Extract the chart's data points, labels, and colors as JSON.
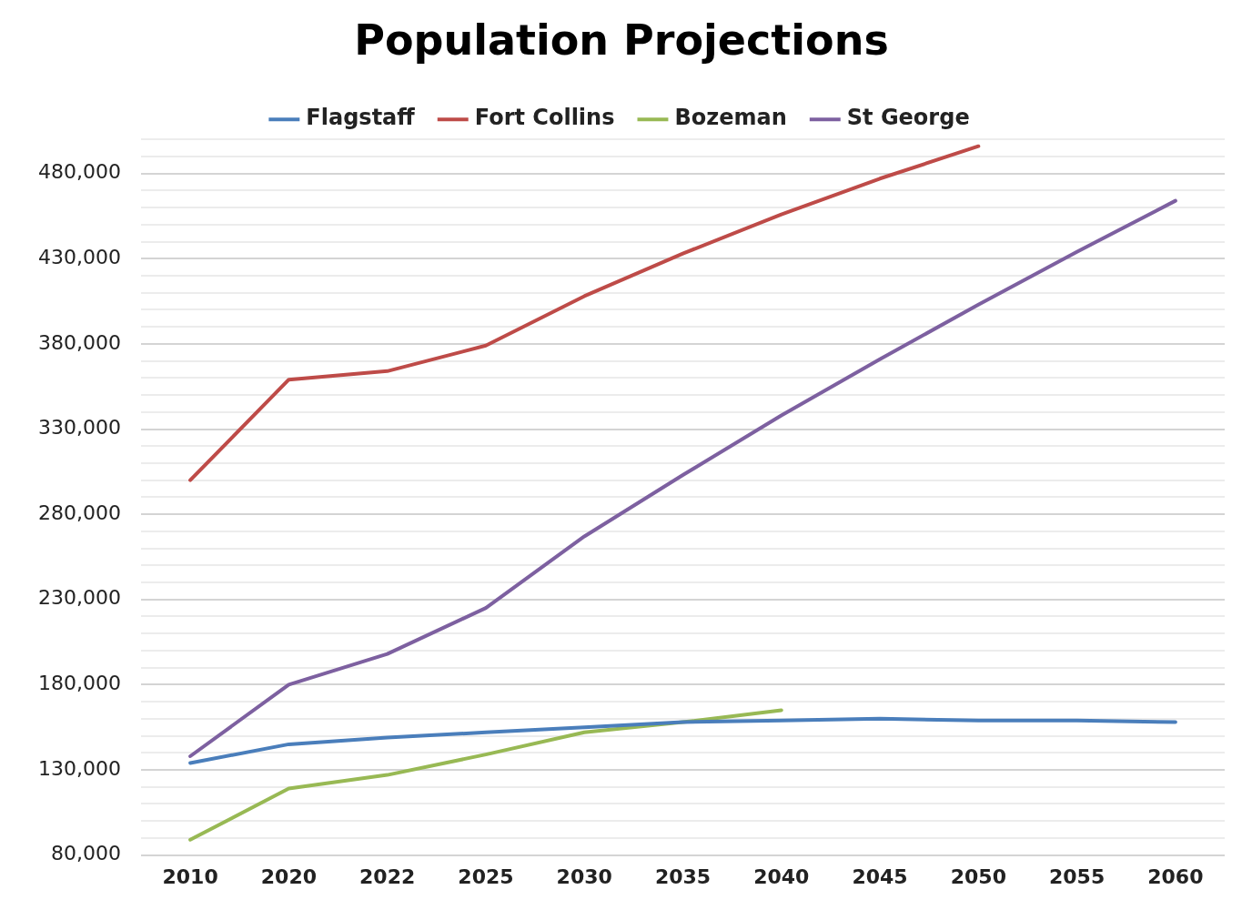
{
  "chart_data": {
    "type": "line",
    "title": "Population Projections",
    "categories": [
      "2010",
      "2020",
      "2022",
      "2025",
      "2030",
      "2035",
      "2040",
      "2045",
      "2050",
      "2055",
      "2060"
    ],
    "series": [
      {
        "name": "Flagstaff",
        "color": "#4a7ebb",
        "values": [
          134000,
          145000,
          149000,
          152000,
          155000,
          158000,
          159000,
          160000,
          159000,
          159000,
          158000
        ]
      },
      {
        "name": "Fort Collins",
        "color": "#be4b48",
        "values": [
          300000,
          359000,
          364000,
          379000,
          408000,
          433000,
          456000,
          477000,
          496000,
          null,
          null
        ]
      },
      {
        "name": "Bozeman",
        "color": "#98b954",
        "values": [
          89000,
          119000,
          127000,
          139000,
          152000,
          158000,
          165000,
          null,
          null,
          null,
          null
        ]
      },
      {
        "name": "St George",
        "color": "#7d60a0",
        "values": [
          138000,
          180000,
          198000,
          225000,
          267000,
          303000,
          338000,
          371000,
          403000,
          434000,
          464000
        ]
      }
    ],
    "ylim": [
      80000,
      500000
    ],
    "yticks": [
      {
        "value": 80000,
        "label": "80,000"
      },
      {
        "value": 90000,
        "label": null
      },
      {
        "value": 100000,
        "label": null
      },
      {
        "value": 110000,
        "label": null
      },
      {
        "value": 120000,
        "label": null
      },
      {
        "value": 130000,
        "label": "130,000"
      },
      {
        "value": 140000,
        "label": null
      },
      {
        "value": 150000,
        "label": null
      },
      {
        "value": 160000,
        "label": null
      },
      {
        "value": 170000,
        "label": null
      },
      {
        "value": 180000,
        "label": "180,000"
      },
      {
        "value": 190000,
        "label": null
      },
      {
        "value": 200000,
        "label": null
      },
      {
        "value": 210000,
        "label": null
      },
      {
        "value": 220000,
        "label": null
      },
      {
        "value": 230000,
        "label": "230,000"
      },
      {
        "value": 240000,
        "label": null
      },
      {
        "value": 250000,
        "label": null
      },
      {
        "value": 260000,
        "label": null
      },
      {
        "value": 270000,
        "label": null
      },
      {
        "value": 280000,
        "label": "280,000"
      },
      {
        "value": 290000,
        "label": null
      },
      {
        "value": 300000,
        "label": null
      },
      {
        "value": 310000,
        "label": null
      },
      {
        "value": 320000,
        "label": null
      },
      {
        "value": 330000,
        "label": "330,000"
      },
      {
        "value": 340000,
        "label": null
      },
      {
        "value": 350000,
        "label": null
      },
      {
        "value": 360000,
        "label": null
      },
      {
        "value": 370000,
        "label": null
      },
      {
        "value": 380000,
        "label": "380,000"
      },
      {
        "value": 390000,
        "label": null
      },
      {
        "value": 400000,
        "label": null
      },
      {
        "value": 410000,
        "label": null
      },
      {
        "value": 420000,
        "label": null
      },
      {
        "value": 430000,
        "label": "430,000"
      },
      {
        "value": 440000,
        "label": null
      },
      {
        "value": 450000,
        "label": null
      },
      {
        "value": 460000,
        "label": null
      },
      {
        "value": 470000,
        "label": null
      },
      {
        "value": 480000,
        "label": "480,000"
      },
      {
        "value": 490000,
        "label": null
      },
      {
        "value": 500000,
        "label": null
      }
    ],
    "grid": "y",
    "legend": "top",
    "marker": "none",
    "line_style": "solid"
  }
}
